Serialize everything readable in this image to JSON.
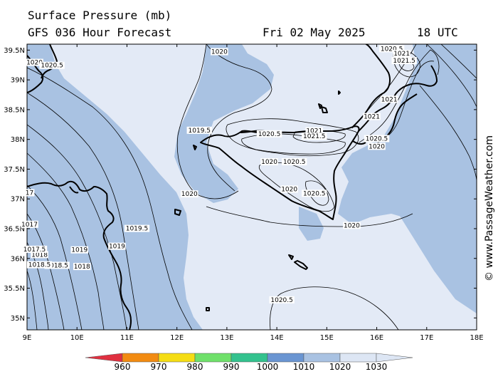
{
  "header": {
    "title": "Surface Pressure (mb)",
    "subtitle": "GFS 036 Hour Forecast",
    "date": "Fri 02 May 2025",
    "time": "18 UTC"
  },
  "watermark": "© www.PassageWeather.com",
  "axes": {
    "lon_ticks": [
      "9E",
      "10E",
      "11E",
      "12E",
      "13E",
      "14E",
      "15E",
      "16E",
      "17E",
      "18E"
    ],
    "lat_ticks": [
      "39.5N",
      "39N",
      "38.5N",
      "38N",
      "37.5N",
      "37N",
      "36.5N",
      "36N",
      "35.5N",
      "35N"
    ],
    "lon_range": [
      9,
      18
    ],
    "lat_range": [
      34.8,
      39.6
    ]
  },
  "contour_labels": [
    {
      "text": "1020",
      "lon": 12.85,
      "lat": 39.45
    },
    {
      "text": "1020.5",
      "lon": 16.3,
      "lat": 39.5
    },
    {
      "text": "1021",
      "lon": 16.5,
      "lat": 39.42
    },
    {
      "text": "1021.5",
      "lon": 16.55,
      "lat": 39.3
    },
    {
      "text": "1020",
      "lon": 9.15,
      "lat": 39.27
    },
    {
      "text": "1020.5",
      "lon": 9.5,
      "lat": 39.22
    },
    {
      "text": "1019.5",
      "lon": 12.45,
      "lat": 38.13
    },
    {
      "text": "1020.5",
      "lon": 13.85,
      "lat": 38.07
    },
    {
      "text": "1021",
      "lon": 14.75,
      "lat": 38.12
    },
    {
      "text": "1021.5",
      "lon": 14.75,
      "lat": 38.03
    },
    {
      "text": "1021",
      "lon": 16.25,
      "lat": 38.65
    },
    {
      "text": "1021",
      "lon": 15.9,
      "lat": 38.36
    },
    {
      "text": "1020.5",
      "lon": 16.0,
      "lat": 37.99
    },
    {
      "text": "1020",
      "lon": 16.0,
      "lat": 37.86
    },
    {
      "text": "1020",
      "lon": 13.85,
      "lat": 37.6
    },
    {
      "text": "1020.5",
      "lon": 14.35,
      "lat": 37.6
    },
    {
      "text": "1020",
      "lon": 14.25,
      "lat": 37.14
    },
    {
      "text": "1020.5",
      "lon": 14.75,
      "lat": 37.07
    },
    {
      "text": "1020",
      "lon": 12.25,
      "lat": 37.06
    },
    {
      "text": "1020",
      "lon": 15.5,
      "lat": 36.53
    },
    {
      "text": "1019.5",
      "lon": 11.2,
      "lat": 36.48
    },
    {
      "text": "1019",
      "lon": 10.8,
      "lat": 36.18
    },
    {
      "text": "1019",
      "lon": 10.05,
      "lat": 36.12
    },
    {
      "text": "1018",
      "lon": 10.1,
      "lat": 35.84
    },
    {
      "text": "1018.5",
      "lon": 9.6,
      "lat": 35.86
    },
    {
      "text": "1018",
      "lon": 9.25,
      "lat": 36.04
    },
    {
      "text": "1017.5",
      "lon": 9.15,
      "lat": 36.13
    },
    {
      "text": "1018.5",
      "lon": 9.25,
      "lat": 35.87
    },
    {
      "text": "1017",
      "lon": 9.05,
      "lat": 36.55
    },
    {
      "text": "17",
      "lon": 9.05,
      "lat": 37.08
    },
    {
      "text": "1020.5",
      "lon": 14.1,
      "lat": 35.28
    }
  ],
  "colorbar": {
    "labels": [
      "960",
      "970",
      "980",
      "990",
      "1000",
      "1010",
      "1020",
      "1030"
    ],
    "colors": [
      "#e8403a",
      "#f28b12",
      "#f5dd14",
      "#6fe06a",
      "#33c28e",
      "#6a95d2",
      "#a9c2e2",
      "#dde6f4"
    ]
  },
  "colors": {
    "low_fill": "#a9c2e2",
    "high_fill": "#e3eaf6"
  }
}
